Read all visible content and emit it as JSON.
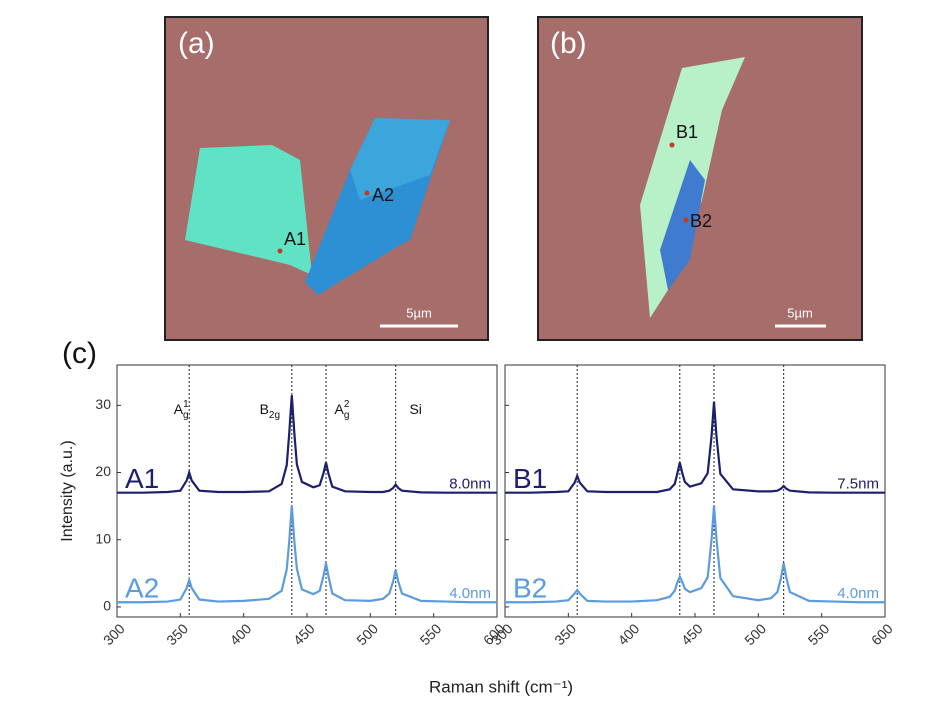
{
  "images": [
    {
      "label": "(a)",
      "points": [
        "A1",
        "A2"
      ],
      "scale_bar": "5µm"
    },
    {
      "label": "(b)",
      "points": [
        "B1",
        "B2"
      ],
      "scale_bar": "5µm"
    }
  ],
  "panel_label": "(c)",
  "chart_data": [
    {
      "type": "line",
      "ylabel": "Intensity (a.u.)",
      "xlabel": "Raman shift (cm⁻¹)",
      "x": [
        300,
        320,
        340,
        350,
        355,
        357,
        359,
        365,
        380,
        400,
        420,
        430,
        434,
        436,
        438,
        440,
        442,
        446,
        455,
        460,
        463,
        465,
        467,
        470,
        480,
        500,
        510,
        515,
        518,
        520,
        522,
        525,
        540,
        560,
        580,
        600
      ],
      "series": [
        {
          "name": "A1",
          "thickness": "8.0nm",
          "color": "#1b1f6e",
          "values": [
            17,
            17,
            17.1,
            17.3,
            18.8,
            20,
            18.8,
            17.3,
            17.1,
            17.1,
            17.2,
            18.3,
            21.1,
            25.9,
            31.5,
            25.9,
            21.2,
            18.6,
            17.8,
            18.1,
            19.9,
            21.5,
            19.8,
            17.9,
            17.2,
            17.1,
            17.1,
            17.3,
            17.7,
            18.2,
            17.7,
            17.3,
            17.05,
            17,
            17,
            17
          ]
        },
        {
          "name": "A2",
          "thickness": "4.0nm",
          "color": "#5b9be0",
          "values": [
            0.7,
            0.7,
            0.8,
            1.1,
            2.8,
            4,
            2.8,
            1.1,
            0.8,
            0.9,
            1.2,
            2.4,
            5.6,
            9.8,
            15,
            9.8,
            5.7,
            2.6,
            1.9,
            2.4,
            4.6,
            6.5,
            4.5,
            2,
            1,
            0.9,
            1.2,
            2,
            3.8,
            5.5,
            3.8,
            2,
            0.9,
            0.8,
            0.7,
            0.7
          ]
        }
      ],
      "peak_lines": [
        357,
        438,
        465,
        520
      ],
      "annotations": [
        {
          "base": "A",
          "sub": "g",
          "sup": "1"
        },
        {
          "base": "B",
          "sub": "2g"
        },
        {
          "base": "A",
          "sub": "g",
          "sup": "2"
        },
        {
          "base": "Si"
        }
      ],
      "xlim": [
        300,
        600
      ],
      "xticks": [
        300,
        350,
        400,
        450,
        500,
        550,
        600
      ],
      "ylim": [
        -1.5,
        36
      ],
      "yticks": [
        0,
        10,
        20,
        30
      ],
      "ytick_labels": true
    },
    {
      "type": "line",
      "x": [
        300,
        320,
        340,
        350,
        355,
        357,
        359,
        365,
        380,
        400,
        420,
        430,
        434,
        436,
        438,
        440,
        442,
        446,
        455,
        460,
        463,
        465,
        467,
        470,
        480,
        500,
        510,
        515,
        518,
        520,
        522,
        525,
        540,
        560,
        580,
        600
      ],
      "series": [
        {
          "name": "B1",
          "thickness": "7.5nm",
          "color": "#1b1f6e",
          "values": [
            17,
            17,
            17.1,
            17.2,
            18.5,
            19.5,
            18.5,
            17.2,
            17.1,
            17.1,
            17.1,
            17.5,
            18.3,
            19.8,
            21.5,
            19.9,
            18.6,
            17.9,
            18.4,
            19.9,
            25.3,
            30.5,
            25.3,
            19.8,
            17.5,
            17.2,
            17.2,
            17.3,
            17.6,
            18,
            17.6,
            17.3,
            17.05,
            17,
            17,
            17
          ]
        },
        {
          "name": "B2",
          "thickness": "4.0nm",
          "color": "#5b9be0",
          "values": [
            0.7,
            0.7,
            0.8,
            1,
            2,
            2.5,
            2,
            0.9,
            0.8,
            0.8,
            1,
            1.5,
            2.4,
            3.6,
            4.5,
            3.7,
            2.7,
            2.2,
            2.8,
            4.4,
            9.9,
            15,
            10,
            4.3,
            1.6,
            1,
            1.3,
            2.2,
            4.4,
            6.5,
            4.4,
            2.2,
            0.9,
            0.8,
            0.7,
            0.7
          ]
        }
      ],
      "peak_lines": [
        357,
        438,
        465,
        520
      ],
      "xlim": [
        300,
        600
      ],
      "xticks": [
        300,
        350,
        400,
        450,
        500,
        550,
        600
      ],
      "ylim": [
        -1.5,
        36
      ],
      "yticks": [
        0,
        10,
        20,
        30
      ],
      "ytick_labels": false
    }
  ]
}
